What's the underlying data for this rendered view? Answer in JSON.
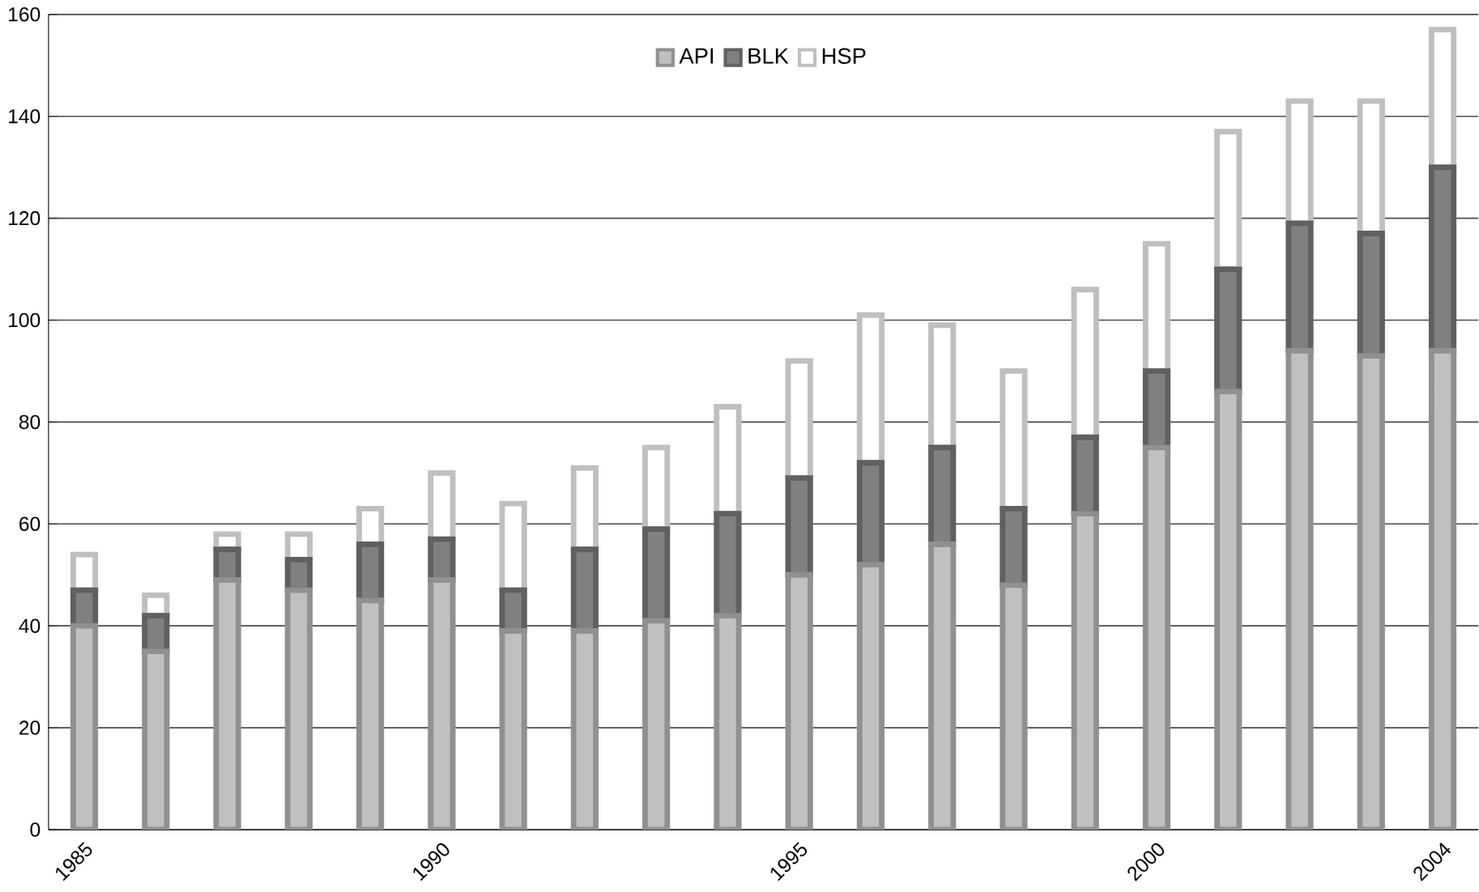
{
  "chart_data": {
    "type": "bar",
    "stacked": true,
    "categories": [
      "1985",
      null,
      null,
      null,
      null,
      "1990",
      null,
      null,
      null,
      null,
      "1995",
      null,
      null,
      null,
      null,
      "2000",
      null,
      null,
      null,
      "2004"
    ],
    "series": [
      {
        "name": "API",
        "color": "#c0c0c0",
        "values": [
          40,
          35,
          49,
          47,
          45,
          49,
          39,
          39,
          41,
          42,
          50,
          52,
          56,
          48,
          62,
          75,
          86,
          94,
          93,
          94
        ]
      },
      {
        "name": "BLK",
        "color": "#808080",
        "values": [
          7,
          7,
          6,
          6,
          11,
          8,
          8,
          16,
          18,
          20,
          19,
          20,
          19,
          15,
          15,
          15,
          24,
          25,
          24,
          36
        ]
      },
      {
        "name": "HSP",
        "color": "#ffffff",
        "values": [
          7,
          4,
          3,
          5,
          7,
          13,
          17,
          16,
          16,
          21,
          23,
          29,
          24,
          27,
          29,
          25,
          27,
          24,
          26,
          27
        ]
      }
    ],
    "ylim": [
      0,
      160
    ],
    "yticks": [
      0,
      20,
      40,
      60,
      80,
      100,
      120,
      140,
      160
    ],
    "grid": "y",
    "legend": "top"
  }
}
